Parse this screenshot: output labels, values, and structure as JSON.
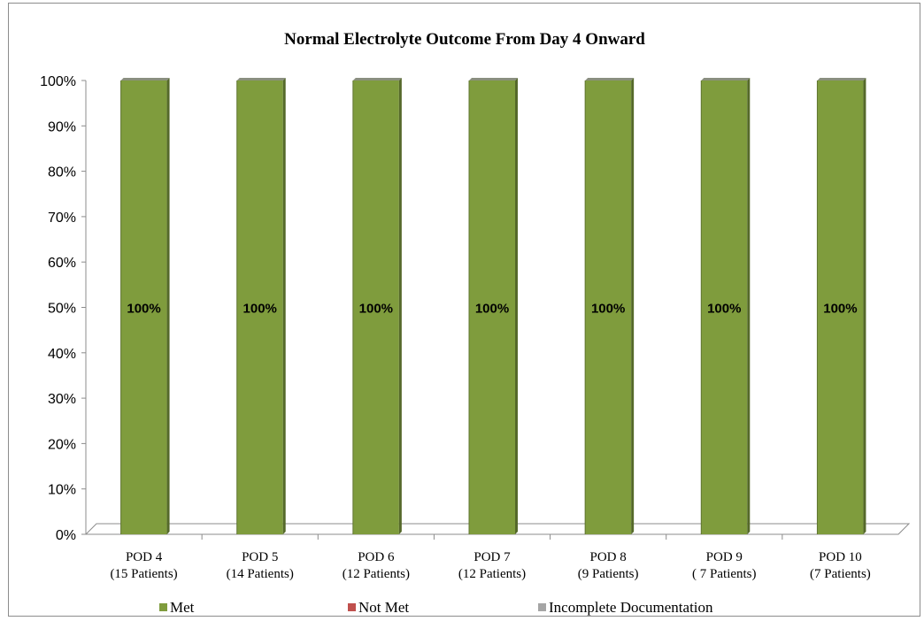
{
  "chart_data": {
    "type": "bar",
    "stacked": true,
    "title": "Normal Electrolyte Outcome From Day 4 Onward",
    "categories": [
      [
        "POD 4",
        "(15 Patients)"
      ],
      [
        "POD 5",
        "(14 Patients)"
      ],
      [
        "POD 6",
        "(12 Patients)"
      ],
      [
        "POD 7",
        "(12 Patients)"
      ],
      [
        "POD 8",
        "(9 Patients)"
      ],
      [
        "POD 9",
        "( 7 Patients)"
      ],
      [
        "POD 10",
        "(7 Patients)"
      ]
    ],
    "series": [
      {
        "name": "Met",
        "color": "#7f9c3d",
        "values": [
          100,
          100,
          100,
          100,
          100,
          100,
          100
        ]
      },
      {
        "name": "Not Met",
        "color": "#c0504d",
        "values": [
          0,
          0,
          0,
          0,
          0,
          0,
          0
        ]
      },
      {
        "name": "Incomplete Documentation",
        "color": "#a5a5a5",
        "values": [
          0,
          0,
          0,
          0,
          0,
          0,
          0
        ]
      }
    ],
    "data_labels": [
      "100%",
      "100%",
      "100%",
      "100%",
      "100%",
      "100%",
      "100%"
    ],
    "yticks": [
      "0%",
      "10%",
      "20%",
      "30%",
      "40%",
      "50%",
      "60%",
      "70%",
      "80%",
      "90%",
      "100%"
    ],
    "ylim": [
      0,
      100
    ],
    "legend_position": "bottom",
    "grid": false
  }
}
